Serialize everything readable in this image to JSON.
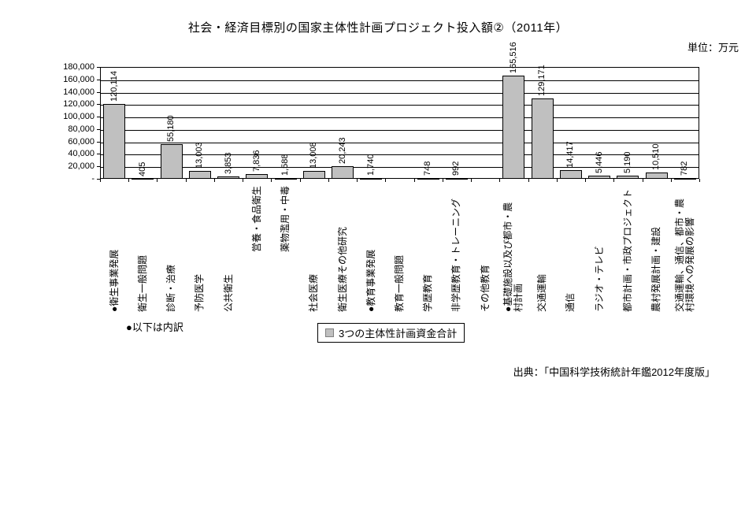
{
  "title": "社会・経済目標別の国家主体性計画プロジェクト投入額②（2011年）",
  "unit_label": "単位：万元",
  "note_breakdown": "●以下は内訳",
  "legend": {
    "label": "3つの主体性計画資金合計"
  },
  "source": "出典：「中国科学技術統計年鑑2012年度版」",
  "chart_data": {
    "type": "bar",
    "title": "社会・経済目標別の国家主体性計画プロジェクト投入額②（2011年）",
    "unit": "万元",
    "categories": [
      "●衛生事業発展",
      "衛生一般問題",
      "診断・治療",
      "予防医学",
      "公共衛生",
      "営養・食品衛生",
      "薬物濫用・中毒",
      "社会医療",
      "衛生医療その他研究",
      "●教育事業発展",
      "教育一般問題",
      "学歴教育",
      "非学歴教育・トレーニング",
      "その他教育",
      "●基礎施設以及び都市・農村計画",
      "交通運輸",
      "通信",
      "ラジオ・テレビ",
      "都市計画・市政プロジェクト",
      "農村発展計画・建設",
      "交通運輸、通信、都市・農村環境への発展の影響"
    ],
    "category_label_lines": [
      [
        "●衛生事業発展"
      ],
      [
        "衛生一般問題"
      ],
      [
        "診断・治療"
      ],
      [
        "予防医学"
      ],
      [
        "公共衛生"
      ],
      [
        "営養・食品衛生"
      ],
      [
        "薬物濫用・中毒"
      ],
      [
        "社会医療"
      ],
      [
        "衛生医療その他研究"
      ],
      [
        "●教育事業発展"
      ],
      [
        "教育一般問題"
      ],
      [
        "学歴教育"
      ],
      [
        "非学歴教育・トレーニング"
      ],
      [
        "その他教育"
      ],
      [
        "●基礎施設以及び都市・農",
        "村計画"
      ],
      [
        "交通運輸"
      ],
      [
        "通信"
      ],
      [
        "ラジオ・テレビ"
      ],
      [
        "都市計画・市政プロジェクト"
      ],
      [
        "農村発展計画・建設"
      ],
      [
        "交通運輸、通信、都市・農",
        "村環境への発展の影響"
      ]
    ],
    "values": [
      120114,
      405,
      55180,
      13003,
      3853,
      7836,
      1588,
      13008,
      20243,
      1740,
      null,
      748,
      992,
      null,
      165516,
      129171,
      14417,
      5446,
      5190,
      10510,
      782
    ],
    "value_labels": [
      "120,114",
      "405",
      "55,180",
      "13,003",
      "3,853",
      "7,836",
      "1,588",
      "13,008",
      "20,243",
      "1,740",
      "",
      "748",
      "992",
      "",
      "165,516",
      "129,171",
      "14,417",
      "5,446",
      "5,190",
      "10,510",
      "782"
    ],
    "ylim": [
      0,
      180000
    ],
    "ytick_step": 20000,
    "ytick_labels_top_to_bottom": [
      "180,000",
      "160,000",
      "140,000",
      "120,000",
      "100,000",
      "80,000",
      "60,000",
      "40,000",
      "20,000",
      "-"
    ],
    "grid": true,
    "legend_position": "bottom",
    "legend_entries": [
      "3つの主体性計画資金合計"
    ],
    "bar_color": "#C0C0C0",
    "bar_border_color": "#000000",
    "high_positioned_label_indices": [
      5,
      6
    ]
  }
}
